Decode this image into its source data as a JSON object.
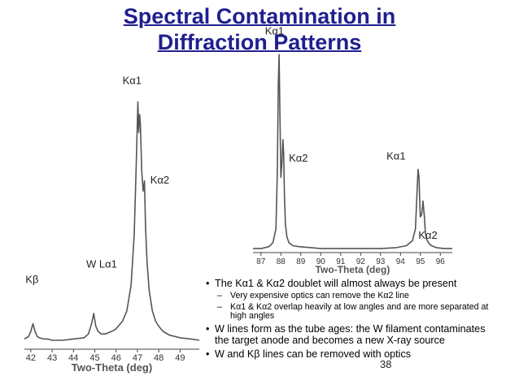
{
  "title": {
    "line1": "Spectral Contamination in",
    "line2": "Diffraction Patterns"
  },
  "chart_data": [
    {
      "type": "line",
      "xlabel": "Two-Theta (deg)",
      "xlim": [
        41.7,
        49.9
      ],
      "xticks": [
        "42",
        "43",
        "44",
        "45",
        "46",
        "47",
        "48",
        "49"
      ],
      "ylim": [
        0,
        1
      ],
      "series": [
        {
          "x": [
            41.7,
            41.9,
            42.0,
            42.1,
            42.2,
            42.3,
            42.4,
            42.6,
            42.8,
            43.0,
            43.5,
            44.0,
            44.5,
            44.7,
            44.85,
            44.95,
            45.05,
            45.15,
            45.3,
            45.5,
            45.8,
            46.0,
            46.3,
            46.5,
            46.7,
            46.85,
            46.95,
            47.02,
            47.06,
            47.1,
            47.14,
            47.2,
            47.27,
            47.33,
            47.38,
            47.45,
            47.55,
            47.7,
            47.85,
            48.0,
            48.2,
            48.5,
            49.0,
            49.5,
            49.9
          ],
          "y": [
            0.04,
            0.05,
            0.07,
            0.1,
            0.07,
            0.05,
            0.045,
            0.04,
            0.04,
            0.035,
            0.035,
            0.04,
            0.045,
            0.06,
            0.1,
            0.14,
            0.09,
            0.07,
            0.06,
            0.06,
            0.07,
            0.08,
            0.11,
            0.15,
            0.25,
            0.45,
            0.75,
            0.97,
            0.85,
            0.92,
            0.88,
            0.7,
            0.62,
            0.66,
            0.48,
            0.34,
            0.23,
            0.15,
            0.11,
            0.09,
            0.07,
            0.055,
            0.045,
            0.04,
            0.035
          ]
        }
      ],
      "annotations": [
        {
          "text": "Kα1",
          "x": 46.3,
          "y": 1.04
        },
        {
          "text": "Kα2",
          "x": 47.6,
          "y": 0.65
        },
        {
          "text": "W Lα1",
          "x": 44.6,
          "y": 0.32
        },
        {
          "text": "Kβ",
          "x": 41.75,
          "y": 0.26
        }
      ]
    },
    {
      "type": "line",
      "xlabel": "Two-Theta (deg)",
      "xlim": [
        86.6,
        96.6
      ],
      "xticks": [
        "87",
        "88",
        "89",
        "90",
        "91",
        "92",
        "93",
        "94",
        "95",
        "96"
      ],
      "ylim": [
        0,
        1
      ],
      "series": [
        {
          "x": [
            86.6,
            87.0,
            87.4,
            87.6,
            87.75,
            87.82,
            87.87,
            87.91,
            87.95,
            88.0,
            88.05,
            88.1,
            88.14,
            88.18,
            88.23,
            88.3,
            88.4,
            88.6,
            88.9,
            89.5,
            90.0,
            91.0,
            92.0,
            93.0,
            93.8,
            94.3,
            94.6,
            94.75,
            94.82,
            94.88,
            94.93,
            94.99,
            95.06,
            95.13,
            95.2,
            95.25,
            95.3,
            95.4,
            95.55,
            95.8,
            96.2,
            96.6
          ],
          "y": [
            0.02,
            0.02,
            0.03,
            0.05,
            0.12,
            0.4,
            0.85,
            1.0,
            0.7,
            0.38,
            0.45,
            0.57,
            0.5,
            0.28,
            0.14,
            0.08,
            0.05,
            0.035,
            0.03,
            0.025,
            0.02,
            0.02,
            0.02,
            0.02,
            0.025,
            0.035,
            0.06,
            0.12,
            0.28,
            0.42,
            0.38,
            0.18,
            0.19,
            0.26,
            0.18,
            0.1,
            0.07,
            0.05,
            0.035,
            0.025,
            0.02,
            0.02
          ]
        }
      ],
      "annotations": [
        {
          "text": "Kα1",
          "x": 87.2,
          "y": 1.1
        },
        {
          "text": "Kα2",
          "x": 88.4,
          "y": 0.46
        },
        {
          "text": "Kα1",
          "x": 93.3,
          "y": 0.47
        },
        {
          "text": "Kα2",
          "x": 94.9,
          "y": 0.07
        }
      ]
    }
  ],
  "bullets": {
    "b1": "The Kα1 & Kα2 doublet will almost always be present",
    "b1_sub1": "Very expensive optics can remove the Kα2 line",
    "b1_sub2": "Kα1 & Kα2 overlap heavily at low angles and are more separated at high angles",
    "b2": "W lines form as the tube ages: the W filament contaminates the target anode and becomes a new X-ray source",
    "b3": "W and Kβ lines can be removed with optics"
  },
  "page_number": "38"
}
